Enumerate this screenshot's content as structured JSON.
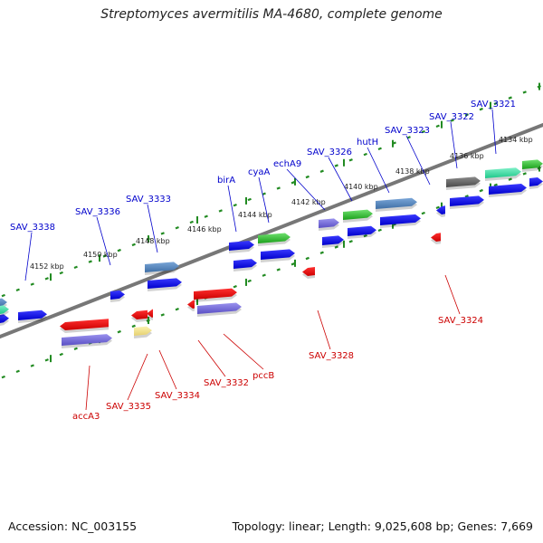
{
  "title": "Streptomyces avermitilis MA-4680, complete genome",
  "footer": {
    "accession": "Accession: NC_003155",
    "stats": "Topology: linear; Length: 9,025,608 bp; Genes: 7,669"
  },
  "colors": {
    "backbone": "#777777",
    "ruler": "#228b22",
    "label_top": "#0000cc",
    "label_bottom": "#cc0000"
  },
  "kbp_labels": [
    "4134 kbp",
    "4136 kbp",
    "4138 kbp",
    "4140 kbp",
    "4142 kbp",
    "4144 kbp",
    "4146 kbp",
    "4148 kbp",
    "4150 kbp",
    "4152 kbp"
  ],
  "top_labels": [
    "SAV_3321",
    "SAV_3322",
    "SAV_3323",
    "hutH",
    "SAV_3326",
    "echA9",
    "cyaA",
    "birA",
    "SAV_3333",
    "SAV_3336",
    "SAV_3338"
  ],
  "bottom_labels": [
    "SAV_3324",
    "SAV_3328",
    "pccB",
    "SAV_3332",
    "SAV_3334",
    "SAV_3335",
    "accA3"
  ]
}
